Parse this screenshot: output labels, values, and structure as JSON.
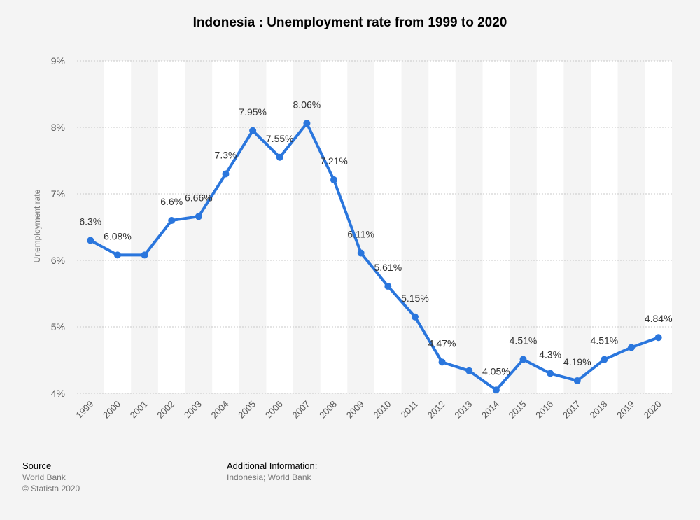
{
  "chart_data": {
    "type": "line",
    "title": "Indonesia : Unemployment rate from 1999 to 2020",
    "ylabel": "Unemployment rate",
    "xlabel": "",
    "ylim": [
      4,
      9
    ],
    "yticks": [
      4,
      5,
      6,
      7,
      8,
      9
    ],
    "ytick_labels": [
      "4%",
      "5%",
      "6%",
      "7%",
      "8%",
      "9%"
    ],
    "grid": true,
    "categories": [
      "1999",
      "2000",
      "2001",
      "2002",
      "2003",
      "2004",
      "2005",
      "2006",
      "2007",
      "2008",
      "2009",
      "2010",
      "2011",
      "2012",
      "2013",
      "2014",
      "2015",
      "2016",
      "2017",
      "2018",
      "2019",
      "2020"
    ],
    "series": [
      {
        "color": "#2a76dd",
        "values": [
          6.3,
          6.08,
          6.08,
          6.6,
          6.66,
          7.3,
          7.95,
          7.55,
          8.06,
          7.21,
          6.11,
          5.61,
          5.15,
          4.47,
          4.34,
          4.05,
          4.51,
          4.3,
          4.19,
          4.51,
          4.69,
          4.84
        ],
        "data_labels": [
          "6.3%",
          "6.08%",
          "",
          "6.6%",
          "6.66%",
          "7.3%",
          "7.95%",
          "7.55%",
          "8.06%",
          "7.21%",
          "6.11%",
          "5.61%",
          "5.15%",
          "4.47%",
          "",
          "4.05%",
          "4.51%",
          "4.3%",
          "4.19%",
          "4.51%",
          "",
          "4.84%"
        ]
      }
    ]
  },
  "footer": {
    "source_heading": "Source",
    "source_lines": [
      "World Bank",
      "© Statista 2020"
    ],
    "additional_heading": "Additional Information:",
    "additional_text": "Indonesia; World Bank"
  }
}
